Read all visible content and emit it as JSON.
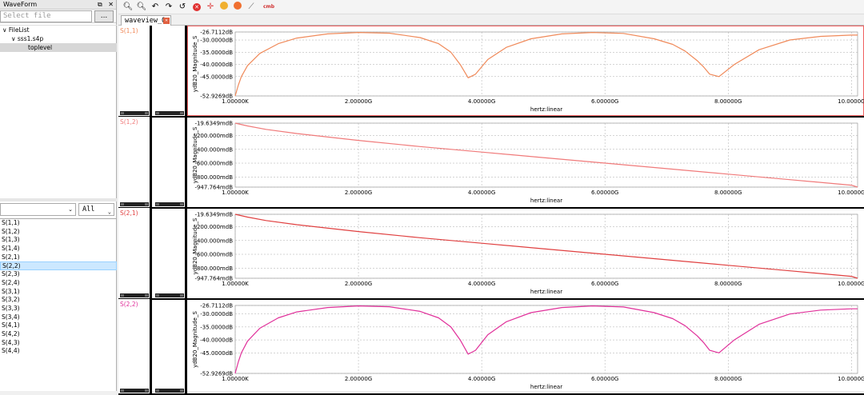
{
  "left_panel": {
    "title": "WaveForm",
    "pin_icon": "pin-icon",
    "close_label": "✕",
    "select_placeholder": "Select file",
    "browse_label": "...",
    "tree": [
      {
        "label": "FileList",
        "toggle": "∨"
      },
      {
        "label": "sss1.s4p",
        "toggle": "∨"
      },
      {
        "label": "toplevel",
        "toggle": ""
      }
    ],
    "filter_value": "",
    "filter2_value": "All",
    "signals": [
      "S(1,1)",
      "S(1,2)",
      "S(1,3)",
      "S(1,4)",
      "S(2,1)",
      "S(2,2)",
      "S(2,3)",
      "S(2,4)",
      "S(3,1)",
      "S(3,2)",
      "S(3,3)",
      "S(3,4)",
      "S(4,1)",
      "S(4,2)",
      "S(4,3)",
      "S(4,4)"
    ],
    "selected_signal": "S(2,2)"
  },
  "toolbar": {
    "tools": [
      "zoom-in-icon",
      "zoom-out-icon",
      "undo-icon",
      "redo-icon",
      "refresh-icon",
      "delete-icon",
      "cursor-cross-icon",
      "marker-icon",
      "stop-icon",
      "measure-icon",
      "cmb-icon"
    ],
    "cmb_label": "cmb"
  },
  "tab": {
    "label": "waveview_0"
  },
  "chart_data": [
    {
      "type": "line",
      "signal": "S(1,1)",
      "color": "#f08a5a",
      "ylabel": "ydB20_Magnitude_S",
      "xlabel": "hertz:linear",
      "yticks": [
        "-26.7112dB",
        "-30.0000dB",
        "-35.0000dB",
        "-40.0000dB",
        "-45.0000dB",
        "-52.9269dB"
      ],
      "ytick_values": [
        -26.7112,
        -30,
        -35,
        -40,
        -45,
        -52.9269
      ],
      "xticks": [
        "1.00000K",
        "2.00000G",
        "4.00000G",
        "6.00000G",
        "8.00000G",
        "10.0000G"
      ],
      "xtick_values": [
        1e-06,
        2,
        4,
        6,
        8,
        10
      ],
      "xlim": [
        0,
        10.1
      ],
      "ylim": [
        -52.9269,
        -26.7112
      ],
      "x": [
        0,
        0.05,
        0.1,
        0.2,
        0.4,
        0.7,
        1.0,
        1.5,
        2.0,
        2.5,
        3.0,
        3.3,
        3.5,
        3.65,
        3.78,
        3.9,
        4.1,
        4.4,
        4.8,
        5.3,
        5.8,
        6.3,
        6.8,
        7.1,
        7.3,
        7.5,
        7.6,
        7.7,
        7.85,
        8.1,
        8.5,
        9.0,
        9.5,
        10.0,
        10.1
      ],
      "series": [
        {
          "values": [
            -52.9,
            -48.5,
            -45.0,
            -40.5,
            -35.5,
            -31.5,
            -29.2,
            -27.5,
            -26.9,
            -27.2,
            -29.0,
            -31.5,
            -35.0,
            -40.0,
            -45.5,
            -44.0,
            -38.0,
            -33.0,
            -29.5,
            -27.5,
            -26.9,
            -27.3,
            -29.5,
            -31.8,
            -34.5,
            -38.5,
            -41.0,
            -44.0,
            -45.0,
            -40.0,
            -34.0,
            -30.0,
            -28.5,
            -28.0,
            -28.0
          ]
        }
      ]
    },
    {
      "type": "line",
      "signal": "S(1,2)",
      "color": "#f07a7a",
      "ylabel": "ydB20_Magnitude_S",
      "xlabel": "hertz:linear",
      "yticks": [
        "-19.6349mdB",
        "-200.000mdB",
        "-400.000mdB",
        "-600.000mdB",
        "-800.000mdB",
        "-947.764mdB"
      ],
      "ytick_values": [
        -19.6349,
        -200,
        -400,
        -600,
        -800,
        -947.764
      ],
      "xticks": [
        "1.00000K",
        "2.00000G",
        "4.00000G",
        "6.00000G",
        "8.00000G",
        "10.0000G"
      ],
      "xtick_values": [
        1e-06,
        2,
        4,
        6,
        8,
        10
      ],
      "xlim": [
        0,
        10.1
      ],
      "ylim": [
        -947.764,
        -19.6349
      ],
      "x": [
        0,
        0.2,
        0.5,
        1,
        2,
        3,
        4,
        5,
        6,
        7,
        8,
        9,
        10,
        10.1
      ],
      "series": [
        {
          "values": [
            -19.6,
            -60,
            -110,
            -170,
            -270,
            -360,
            -440,
            -520,
            -600,
            -680,
            -760,
            -840,
            -920,
            -947.7
          ]
        }
      ]
    },
    {
      "type": "line",
      "signal": "S(2,1)",
      "color": "#e04040",
      "ylabel": "ydB20_Magnitude_S",
      "xlabel": "hertz:linear",
      "yticks": [
        "-19.6349mdB",
        "-200.000mdB",
        "-400.000mdB",
        "-600.000mdB",
        "-800.000mdB",
        "-947.764mdB"
      ],
      "ytick_values": [
        -19.6349,
        -200,
        -400,
        -600,
        -800,
        -947.764
      ],
      "xticks": [
        "1.00000K",
        "2.00000G",
        "4.00000G",
        "6.00000G",
        "8.00000G",
        "10.0000G"
      ],
      "xtick_values": [
        1e-06,
        2,
        4,
        6,
        8,
        10
      ],
      "xlim": [
        0,
        10.1
      ],
      "ylim": [
        -947.764,
        -19.6349
      ],
      "x": [
        0,
        0.2,
        0.5,
        1,
        2,
        3,
        4,
        5,
        6,
        7,
        8,
        9,
        10,
        10.1
      ],
      "series": [
        {
          "values": [
            -19.6,
            -60,
            -110,
            -170,
            -270,
            -360,
            -440,
            -520,
            -600,
            -680,
            -760,
            -840,
            -920,
            -947.7
          ]
        }
      ]
    },
    {
      "type": "line",
      "signal": "S(2,2)",
      "color": "#e0309a",
      "ylabel": "ydB20_Magnitude_S",
      "xlabel": "hertz:linear",
      "yticks": [
        "-26.7112dB",
        "-30.0000dB",
        "-35.0000dB",
        "-40.0000dB",
        "-45.0000dB",
        "-52.9269dB"
      ],
      "ytick_values": [
        -26.7112,
        -30,
        -35,
        -40,
        -45,
        -52.9269
      ],
      "xticks": [
        "1.00000K",
        "2.00000G",
        "4.00000G",
        "6.00000G",
        "8.00000G",
        "10.0000G"
      ],
      "xtick_values": [
        1e-06,
        2,
        4,
        6,
        8,
        10
      ],
      "xlim": [
        0,
        10.1
      ],
      "ylim": [
        -52.9269,
        -26.7112
      ],
      "x": [
        0,
        0.05,
        0.1,
        0.2,
        0.4,
        0.7,
        1.0,
        1.5,
        2.0,
        2.5,
        3.0,
        3.3,
        3.5,
        3.65,
        3.78,
        3.9,
        4.1,
        4.4,
        4.8,
        5.3,
        5.8,
        6.3,
        6.8,
        7.1,
        7.3,
        7.5,
        7.6,
        7.7,
        7.85,
        8.1,
        8.5,
        9.0,
        9.5,
        10.0,
        10.1
      ],
      "series": [
        {
          "values": [
            -52.9,
            -48.5,
            -45.0,
            -40.5,
            -35.5,
            -31.5,
            -29.2,
            -27.5,
            -26.9,
            -27.2,
            -29.0,
            -31.5,
            -35.0,
            -40.0,
            -45.5,
            -44.0,
            -38.0,
            -33.0,
            -29.5,
            -27.5,
            -26.9,
            -27.3,
            -29.5,
            -31.8,
            -34.5,
            -38.5,
            -41.0,
            -44.0,
            -45.0,
            -40.0,
            -34.0,
            -30.0,
            -28.5,
            -28.0,
            -28.0
          ]
        }
      ]
    }
  ]
}
